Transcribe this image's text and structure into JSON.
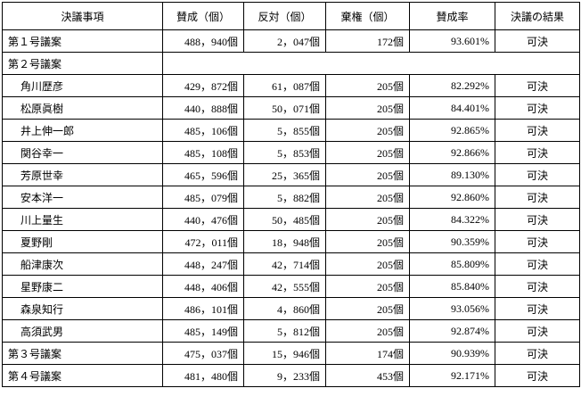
{
  "table": {
    "header": [
      "決議事項",
      "賛成（個）",
      "反対（個）",
      "棄権（個）",
      "賛成率",
      "決議の結果"
    ],
    "rows": [
      [
        "第１号議案",
        "488，940個",
        "2，047個",
        "172個",
        "93.601%",
        "可決"
      ],
      [
        "第２号議案"
      ],
      [
        "角川歴彦",
        "429，872個",
        "61，087個",
        "205個",
        "82.292%",
        "可決"
      ],
      [
        "松原眞樹",
        "440，888個",
        "50，071個",
        "205個",
        "84.401%",
        "可決"
      ],
      [
        "井上伸一郎",
        "485，106個",
        "5，855個",
        "205個",
        "92.865%",
        "可決"
      ],
      [
        "関谷幸一",
        "485，108個",
        "5，853個",
        "205個",
        "92.866%",
        "可決"
      ],
      [
        "芳原世幸",
        "465，596個",
        "25，365個",
        "205個",
        "89.130%",
        "可決"
      ],
      [
        "安本洋一",
        "485，079個",
        "5，882個",
        "205個",
        "92.860%",
        "可決"
      ],
      [
        "川上量生",
        "440，476個",
        "50，485個",
        "205個",
        "84.322%",
        "可決"
      ],
      [
        "夏野剛",
        "472，011個",
        "18，948個",
        "205個",
        "90.359%",
        "可決"
      ],
      [
        "船津康次",
        "448，247個",
        "42，714個",
        "205個",
        "85.809%",
        "可決"
      ],
      [
        "星野康二",
        "448，406個",
        "42，555個",
        "205個",
        "85.840%",
        "可決"
      ],
      [
        "森泉知行",
        "486，101個",
        "4，860個",
        "205個",
        "93.056%",
        "可決"
      ],
      [
        "高須武男",
        "485，149個",
        "5，812個",
        "205個",
        "92.874%",
        "可決"
      ],
      [
        "第３号議案",
        "475，037個",
        "15，946個",
        "174個",
        "90.939%",
        "可決"
      ],
      [
        "第４号議案",
        "481，480個",
        "9，233個",
        "453個",
        "92.171%",
        "可決"
      ]
    ]
  }
}
